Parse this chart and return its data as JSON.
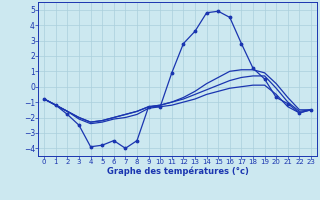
{
  "xlabel": "Graphe des températures (°c)",
  "xlim": [
    -0.5,
    23.5
  ],
  "ylim": [
    -4.5,
    5.5
  ],
  "yticks": [
    -4,
    -3,
    -2,
    -1,
    0,
    1,
    2,
    3,
    4,
    5
  ],
  "xticks": [
    0,
    1,
    2,
    3,
    4,
    5,
    6,
    7,
    8,
    9,
    10,
    11,
    12,
    13,
    14,
    15,
    16,
    17,
    18,
    19,
    20,
    21,
    22,
    23
  ],
  "background_color": "#cce8f0",
  "grid_color": "#aacfdc",
  "line_color": "#1a35b0",
  "line1_x": [
    0,
    1,
    2,
    3,
    4,
    5,
    6,
    7,
    8,
    9,
    10,
    11,
    12,
    13,
    14,
    15,
    16,
    17,
    18,
    19,
    20,
    21,
    22,
    23
  ],
  "line1_y": [
    -0.8,
    -1.2,
    -1.8,
    -2.5,
    -3.9,
    -3.8,
    -3.5,
    -4.0,
    -3.5,
    -1.3,
    -1.3,
    0.9,
    2.8,
    3.6,
    4.8,
    4.9,
    4.5,
    2.8,
    1.2,
    0.5,
    -0.7,
    -1.1,
    -1.7,
    -1.5
  ],
  "line2_x": [
    0,
    1,
    2,
    3,
    4,
    5,
    6,
    7,
    8,
    9,
    10,
    11,
    12,
    13,
    14,
    15,
    16,
    17,
    18,
    19,
    20,
    21,
    22,
    23
  ],
  "line2_y": [
    -0.8,
    -1.2,
    -1.6,
    -2.1,
    -2.4,
    -2.3,
    -2.1,
    -2.0,
    -1.8,
    -1.4,
    -1.3,
    -1.2,
    -1.0,
    -0.8,
    -0.5,
    -0.3,
    -0.1,
    0.0,
    0.1,
    0.1,
    -0.5,
    -1.3,
    -1.7,
    -1.5
  ],
  "line3_x": [
    0,
    1,
    2,
    3,
    4,
    5,
    6,
    7,
    8,
    9,
    10,
    11,
    12,
    13,
    14,
    15,
    16,
    17,
    18,
    19,
    20,
    21,
    22,
    23
  ],
  "line3_y": [
    -0.8,
    -1.2,
    -1.6,
    -2.0,
    -2.3,
    -2.2,
    -2.0,
    -1.8,
    -1.6,
    -1.3,
    -1.2,
    -1.0,
    -0.7,
    -0.3,
    0.2,
    0.6,
    1.0,
    1.1,
    1.1,
    0.9,
    0.2,
    -0.7,
    -1.5,
    -1.5
  ],
  "line4_x": [
    0,
    1,
    2,
    3,
    4,
    5,
    6,
    7,
    8,
    9,
    10,
    11,
    12,
    13,
    14,
    15,
    16,
    17,
    18,
    19,
    20,
    21,
    22,
    23
  ],
  "line4_y": [
    -0.8,
    -1.2,
    -1.6,
    -2.0,
    -2.3,
    -2.2,
    -2.0,
    -1.8,
    -1.6,
    -1.3,
    -1.2,
    -1.0,
    -0.8,
    -0.5,
    -0.2,
    0.1,
    0.4,
    0.6,
    0.7,
    0.7,
    -0.1,
    -1.0,
    -1.6,
    -1.5
  ]
}
